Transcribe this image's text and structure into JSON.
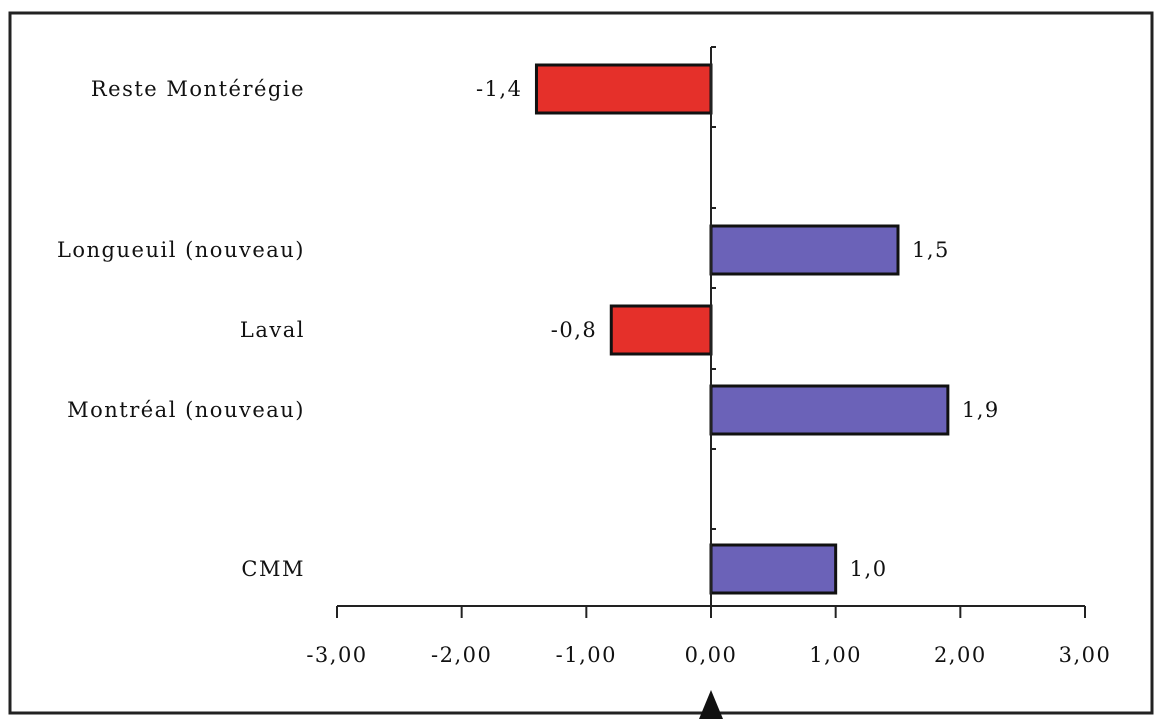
{
  "chart_data": {
    "type": "bar",
    "orientation": "horizontal",
    "categories": [
      "Reste Montérégie",
      "Longueuil (nouveau)",
      "Laval",
      "Montréal (nouveau)",
      "CMM"
    ],
    "values": [
      -1.4,
      1.5,
      -0.8,
      1.9,
      1.0
    ],
    "value_labels": [
      "-1,4",
      "1,5",
      "-0,8",
      "1,9",
      "1,0"
    ],
    "xlim": [
      -3,
      3
    ],
    "xticks": [
      -3,
      -2,
      -1,
      0,
      1,
      2,
      3
    ],
    "xtick_labels": [
      "-3,00",
      "-2,00",
      "-1,00",
      "0,00",
      "1,00",
      "2,00",
      "3,00"
    ],
    "title": "",
    "xlabel": "",
    "ylabel": "",
    "grid": false,
    "legend": "none",
    "colors": {
      "positive": "#6b62b8",
      "negative": "#e5302a",
      "outline": "#111111",
      "frame": "#222222",
      "background": "#ffffff"
    }
  }
}
